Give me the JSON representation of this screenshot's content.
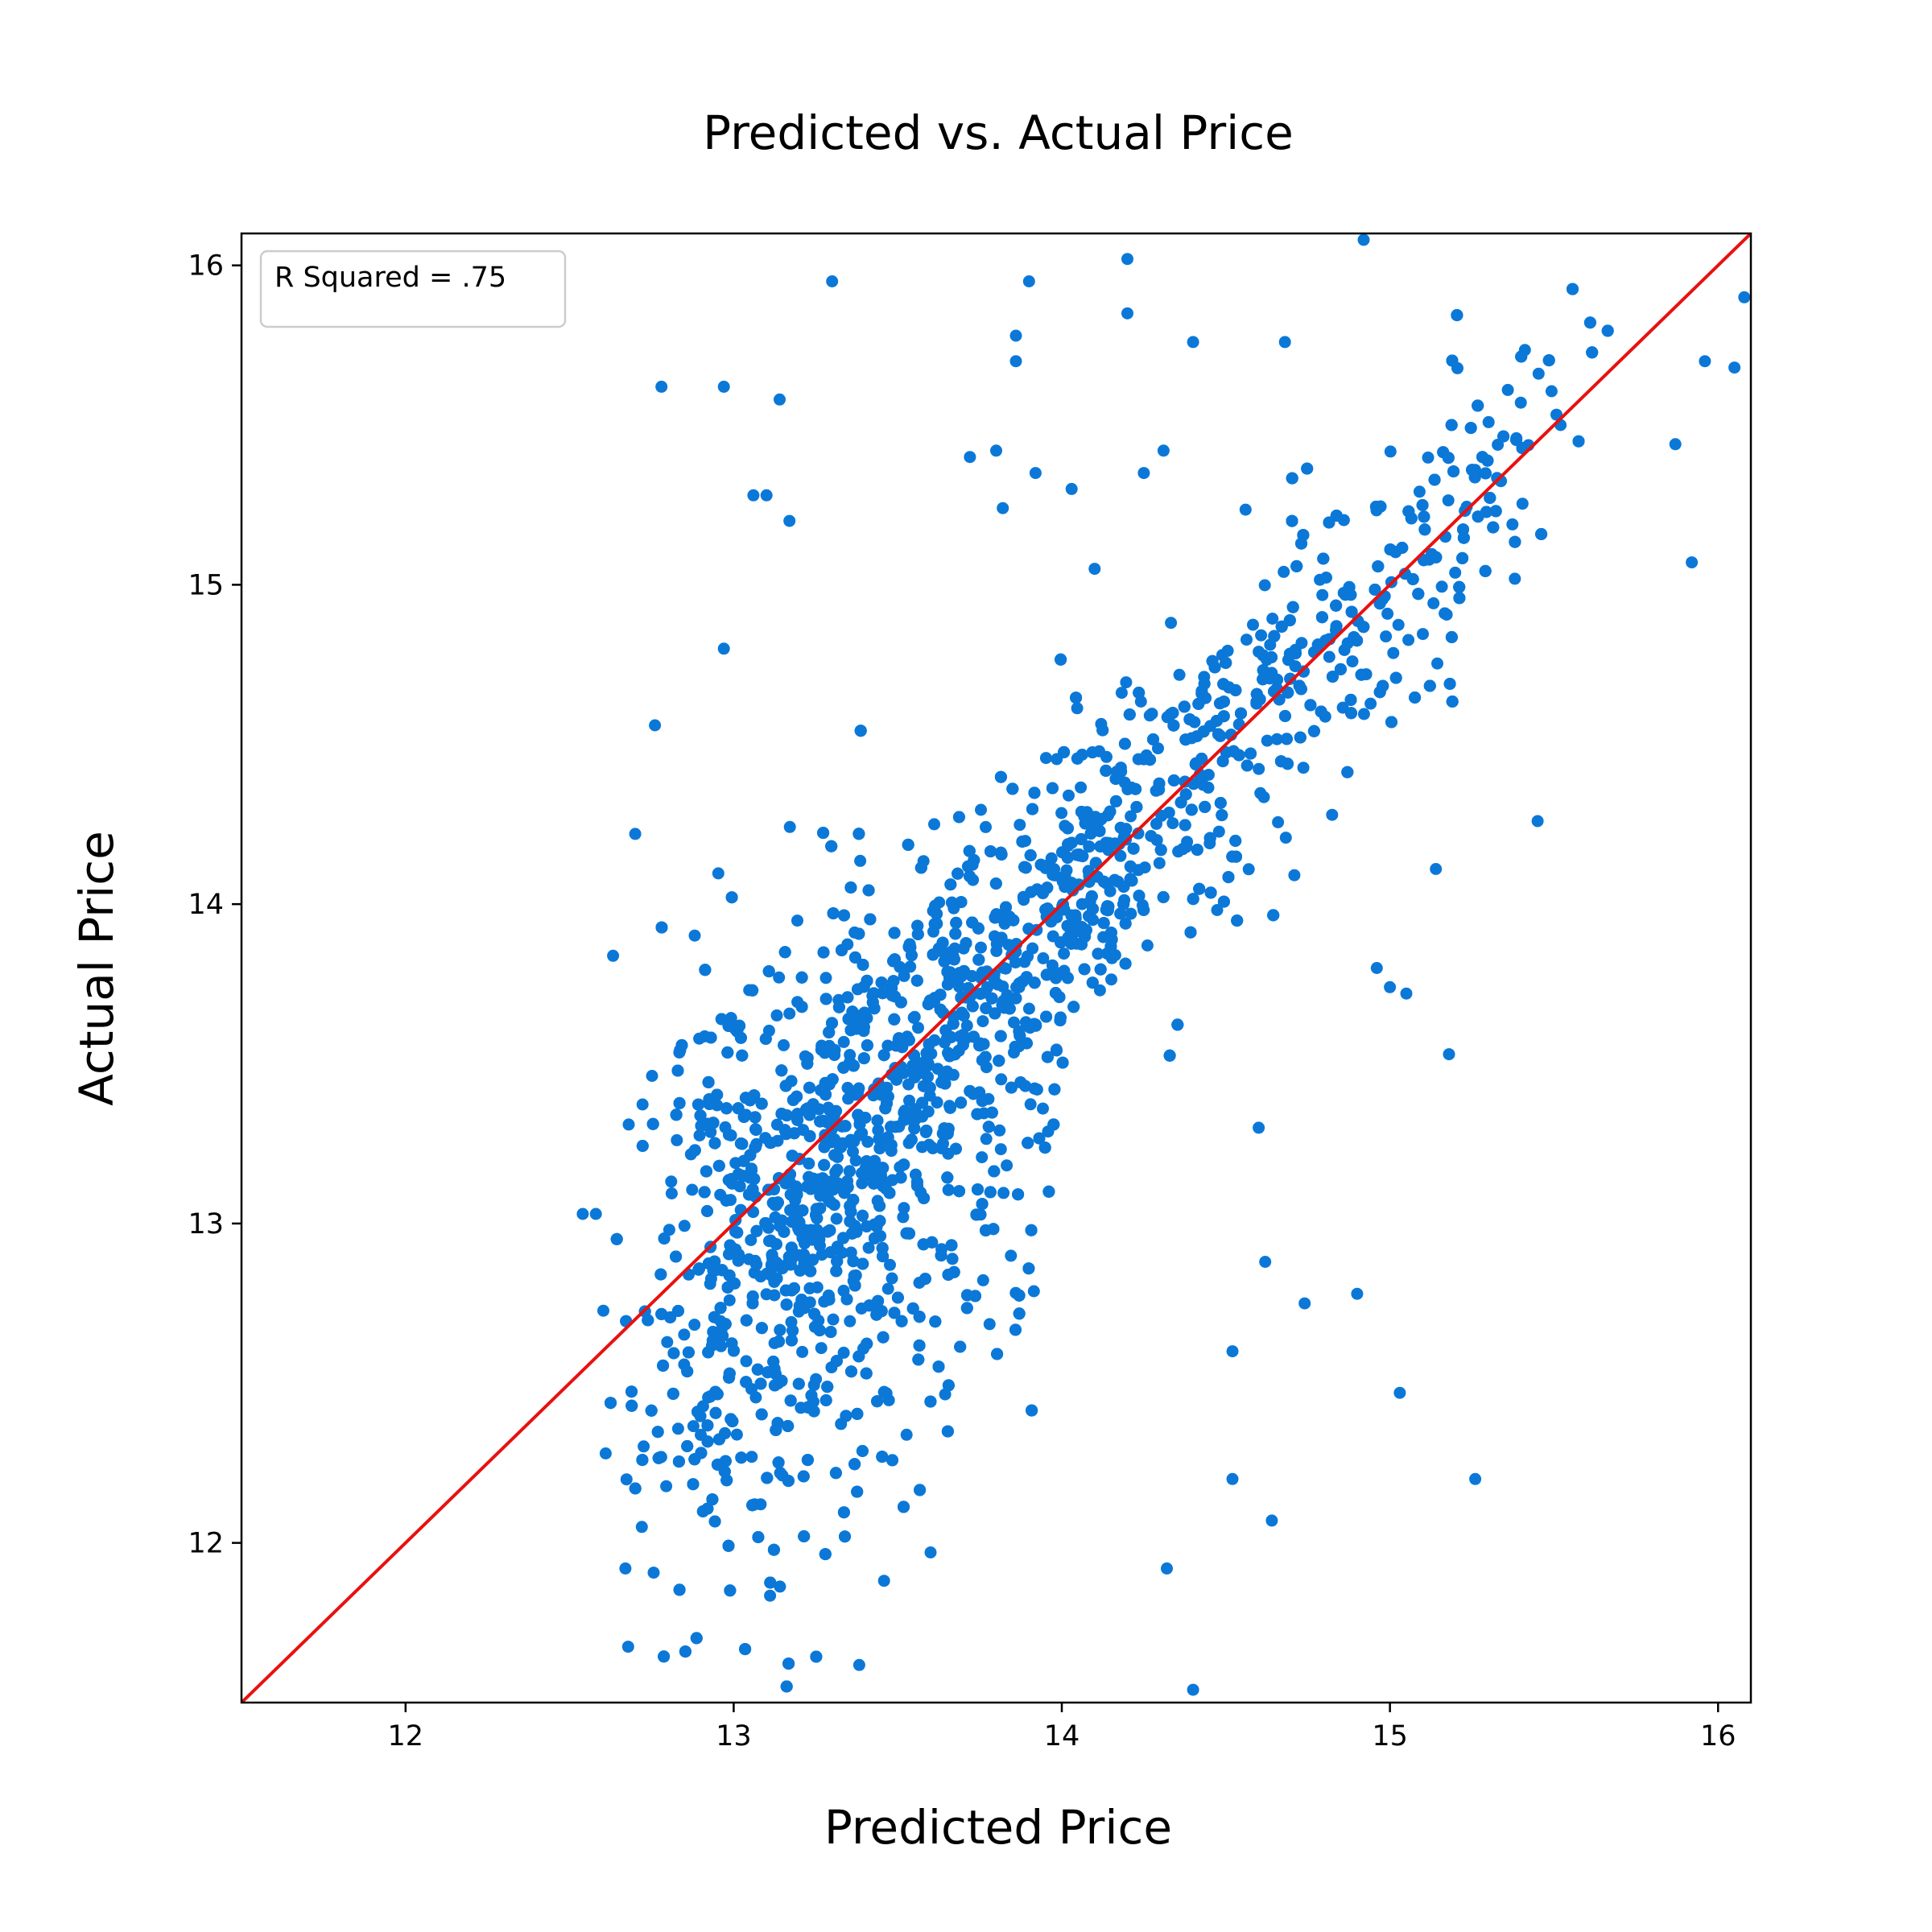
{
  "chart_data": {
    "type": "scatter",
    "title": "Predicted vs. Actual Price",
    "xlabel": "Predicted Price",
    "ylabel": "Actual Price",
    "xlim": [
      11.5,
      16.1
    ],
    "ylim": [
      11.5,
      16.1
    ],
    "x_ticks": [
      12,
      13,
      14,
      15,
      16
    ],
    "y_ticks": [
      12,
      13,
      14,
      15,
      16
    ],
    "grid": false,
    "legend": {
      "text": "R Squared = .75",
      "position": "top-left"
    },
    "series": [
      {
        "type": "scatter",
        "color": "#0b78d8",
        "x_range": [
          12.5,
          16.1
        ],
        "y_range": [
          11.55,
          16.1
        ]
      },
      {
        "type": "line",
        "color": "#e8110f",
        "x": [
          11.5,
          16.1
        ],
        "y": [
          11.5,
          16.1
        ]
      }
    ],
    "outlier_points": [
      [
        13.3,
        15.95
      ],
      [
        12.78,
        15.62
      ],
      [
        12.97,
        15.62
      ],
      [
        13.14,
        15.58
      ],
      [
        13.06,
        15.28
      ],
      [
        13.1,
        15.28
      ],
      [
        13.17,
        15.2
      ],
      [
        12.97,
        14.8
      ],
      [
        12.76,
        14.56
      ],
      [
        12.7,
        14.22
      ],
      [
        13.86,
        15.78
      ],
      [
        13.86,
        15.7
      ],
      [
        13.9,
        15.95
      ],
      [
        14.2,
        16.02
      ],
      [
        14.2,
        15.85
      ],
      [
        14.4,
        15.76
      ],
      [
        14.68,
        15.76
      ],
      [
        13.8,
        15.42
      ],
      [
        13.72,
        15.4
      ],
      [
        13.82,
        15.24
      ],
      [
        14.25,
        15.35
      ],
      [
        14.31,
        15.42
      ],
      [
        12.54,
        13.03
      ],
      [
        12.58,
        13.03
      ],
      [
        12.61,
        12.28
      ],
      [
        12.68,
        13.31
      ],
      [
        12.72,
        12.05
      ],
      [
        12.67,
        11.92
      ],
      [
        13.6,
        11.97
      ],
      [
        14.4,
        11.54
      ],
      [
        14.52,
        12.2
      ],
      [
        14.64,
        12.07
      ],
      [
        14.32,
        11.92
      ],
      [
        14.52,
        12.6
      ],
      [
        14.62,
        12.88
      ],
      [
        14.74,
        12.75
      ],
      [
        14.9,
        12.78
      ],
      [
        15.0,
        13.74
      ],
      [
        15.05,
        13.72
      ],
      [
        15.03,
        12.47
      ],
      [
        15.26,
        12.2
      ],
      [
        15.18,
        13.53
      ],
      [
        15.14,
        14.11
      ],
      [
        15.45,
        14.26
      ],
      [
        15.92,
        15.07
      ],
      [
        15.87,
        15.44
      ],
      [
        15.96,
        15.7
      ],
      [
        16.05,
        15.68
      ],
      [
        16.08,
        15.9
      ],
      [
        15.52,
        15.5
      ],
      [
        14.92,
        16.08
      ],
      [
        14.1,
        15.05
      ],
      [
        14.03,
        15.3
      ],
      [
        13.92,
        15.35
      ],
      [
        14.96,
        13.8
      ],
      [
        14.6,
        13.3
      ]
    ],
    "cluster_seed": 12345
  }
}
